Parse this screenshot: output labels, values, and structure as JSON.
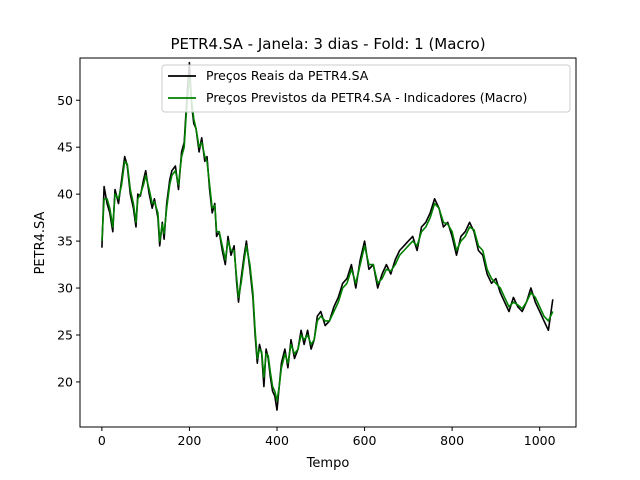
{
  "chart_data": {
    "type": "line",
    "title": "PETR4.SA - Janela: 3 dias - Fold: 1 (Macro)",
    "xlabel": "Tempo",
    "ylabel": "PETR4.SA",
    "xlim": [
      -50,
      1083
    ],
    "ylim": [
      15.2,
      54.5
    ],
    "xticks": [
      0,
      200,
      400,
      600,
      800,
      1000
    ],
    "yticks": [
      20,
      25,
      30,
      35,
      40,
      45,
      50
    ],
    "grid": false,
    "legend_position": "upper-right",
    "series": [
      {
        "name": "Preços Reais da PETR4.SA",
        "color": "#000000",
        "x": [
          0,
          5,
          12,
          18,
          25,
          30,
          38,
          45,
          52,
          58,
          65,
          72,
          78,
          82,
          88,
          95,
          100,
          108,
          115,
          120,
          128,
          132,
          138,
          142,
          148,
          155,
          160,
          168,
          175,
          182,
          188,
          192,
          196,
          200,
          205,
          210,
          215,
          222,
          228,
          235,
          240,
          246,
          252,
          258,
          262,
          268,
          275,
          282,
          288,
          295,
          302,
          308,
          312,
          318,
          325,
          330,
          338,
          345,
          350,
          355,
          360,
          365,
          370,
          375,
          380,
          385,
          390,
          395,
          400,
          405,
          410,
          418,
          425,
          432,
          440,
          448,
          455,
          462,
          470,
          478,
          485,
          492,
          500,
          510,
          520,
          530,
          540,
          550,
          560,
          570,
          580,
          590,
          600,
          610,
          620,
          630,
          640,
          650,
          660,
          670,
          680,
          690,
          700,
          710,
          720,
          730,
          740,
          750,
          760,
          770,
          780,
          790,
          800,
          810,
          820,
          830,
          840,
          850,
          860,
          870,
          880,
          890,
          900,
          910,
          920,
          930,
          940,
          950,
          960,
          970,
          980,
          990,
          1000,
          1010,
          1020,
          1030
        ],
        "values": [
          34.3,
          40.8,
          39.0,
          38.0,
          36.0,
          40.5,
          39.0,
          41.5,
          44.0,
          43.0,
          40.0,
          38.5,
          36.5,
          40.0,
          39.8,
          41.5,
          42.5,
          40.0,
          38.5,
          39.5,
          37.5,
          34.5,
          37.0,
          35.2,
          39.0,
          41.5,
          42.5,
          43.0,
          40.5,
          44.5,
          45.5,
          48.5,
          51.5,
          54.0,
          49.5,
          47.5,
          47.0,
          44.5,
          46.0,
          43.5,
          44.0,
          40.5,
          38.0,
          39.0,
          35.5,
          36.0,
          34.0,
          32.5,
          35.5,
          33.5,
          34.5,
          30.5,
          28.5,
          31.0,
          33.5,
          35.0,
          32.0,
          29.0,
          25.0,
          22.0,
          24.0,
          23.0,
          19.5,
          23.5,
          22.5,
          20.5,
          19.0,
          18.5,
          17.0,
          19.5,
          22.0,
          23.5,
          21.5,
          24.5,
          22.5,
          23.5,
          25.5,
          24.0,
          25.5,
          23.5,
          24.5,
          27.0,
          27.5,
          26.0,
          26.5,
          28.0,
          29.0,
          30.5,
          31.0,
          32.5,
          30.0,
          33.0,
          35.0,
          32.0,
          32.5,
          30.0,
          31.5,
          32.5,
          31.5,
          33.0,
          34.0,
          34.5,
          35.0,
          35.5,
          34.0,
          36.5,
          37.0,
          38.0,
          39.5,
          38.5,
          36.5,
          37.0,
          35.5,
          33.5,
          35.5,
          36.0,
          37.0,
          36.0,
          34.0,
          33.5,
          31.5,
          30.5,
          31.0,
          29.5,
          28.5,
          27.5,
          29.0,
          28.0,
          27.5,
          28.5,
          30.0,
          28.5,
          27.5,
          26.5,
          25.5,
          28.8
        ]
      },
      {
        "name": "Preços Previstos da PETR4.SA - Indicadores (Macro)",
        "color": "#008000",
        "x": [
          0,
          5,
          12,
          18,
          25,
          30,
          38,
          45,
          52,
          58,
          65,
          72,
          78,
          82,
          88,
          95,
          100,
          108,
          115,
          120,
          128,
          132,
          138,
          142,
          148,
          155,
          160,
          168,
          175,
          182,
          188,
          192,
          196,
          200,
          205,
          210,
          215,
          222,
          228,
          235,
          240,
          246,
          252,
          258,
          262,
          268,
          275,
          282,
          288,
          295,
          302,
          308,
          312,
          318,
          325,
          330,
          338,
          345,
          350,
          355,
          360,
          365,
          370,
          375,
          380,
          385,
          390,
          395,
          400,
          405,
          410,
          418,
          425,
          432,
          440,
          448,
          455,
          462,
          470,
          478,
          485,
          492,
          500,
          510,
          520,
          530,
          540,
          550,
          560,
          570,
          580,
          590,
          600,
          610,
          620,
          630,
          640,
          650,
          660,
          670,
          680,
          690,
          700,
          710,
          720,
          730,
          740,
          750,
          760,
          770,
          780,
          790,
          800,
          810,
          820,
          830,
          840,
          850,
          860,
          870,
          880,
          890,
          900,
          910,
          920,
          930,
          940,
          950,
          960,
          970,
          980,
          990,
          1000,
          1010,
          1020,
          1030
        ],
        "values": [
          35.0,
          39.5,
          39.5,
          38.5,
          36.5,
          40.0,
          39.5,
          41.0,
          43.5,
          43.2,
          40.5,
          39.0,
          37.0,
          39.5,
          40.0,
          41.0,
          42.0,
          40.5,
          39.0,
          39.2,
          38.0,
          35.0,
          36.8,
          35.8,
          38.5,
          41.0,
          42.0,
          42.5,
          41.0,
          44.0,
          45.0,
          48.0,
          50.5,
          52.5,
          50.0,
          48.0,
          47.0,
          45.0,
          45.5,
          44.0,
          43.5,
          41.0,
          38.5,
          38.8,
          36.0,
          36.0,
          34.5,
          33.0,
          35.0,
          34.0,
          34.0,
          31.0,
          29.0,
          30.5,
          33.0,
          34.5,
          32.5,
          29.5,
          25.5,
          22.5,
          23.5,
          23.2,
          20.5,
          23.0,
          22.8,
          21.0,
          19.5,
          19.0,
          18.0,
          19.5,
          21.5,
          23.0,
          22.0,
          24.0,
          23.0,
          23.5,
          25.0,
          24.5,
          25.0,
          24.0,
          24.5,
          26.5,
          27.0,
          26.5,
          26.5,
          27.5,
          28.5,
          30.0,
          30.5,
          32.0,
          30.5,
          32.5,
          34.5,
          32.5,
          32.5,
          30.5,
          31.0,
          32.0,
          31.8,
          32.5,
          33.5,
          34.0,
          34.5,
          35.0,
          34.5,
          36.0,
          36.5,
          37.5,
          39.0,
          38.5,
          37.0,
          36.8,
          36.0,
          34.0,
          35.0,
          35.5,
          36.5,
          36.2,
          34.5,
          34.0,
          32.0,
          31.0,
          30.5,
          30.0,
          29.0,
          28.0,
          28.5,
          28.2,
          27.8,
          28.5,
          29.5,
          29.0,
          28.0,
          27.0,
          26.5,
          27.5
        ]
      }
    ]
  }
}
